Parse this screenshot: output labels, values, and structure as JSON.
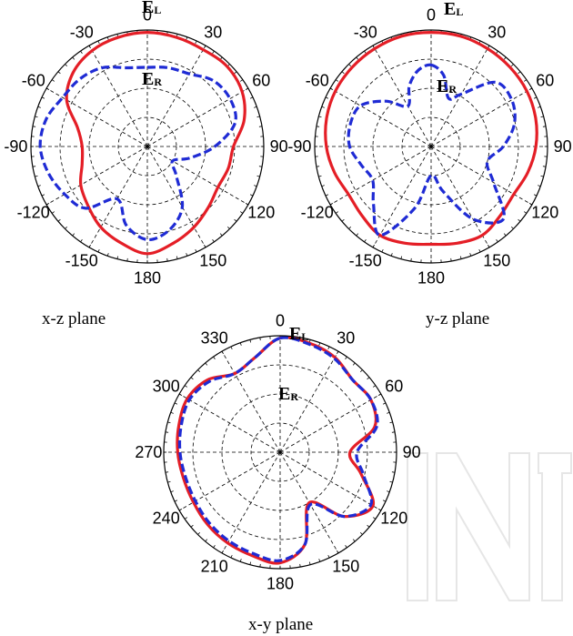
{
  "colors": {
    "el": "#e41e26",
    "er": "#1f2bd4",
    "grid": "#000000",
    "watermark": "#e6e6e6"
  },
  "legend_labels": [
    "E",
    "L",
    "E",
    "R"
  ],
  "chart_data": [
    {
      "type": "polar-line",
      "caption": "x-z plane",
      "grid": true,
      "r_range": [
        0,
        1
      ],
      "angle_ticks": [
        "0",
        "30",
        "60",
        "90",
        "120",
        "150",
        "180",
        "-150",
        "-120",
        "-90",
        "-60",
        "-30"
      ],
      "series": [
        {
          "label_letter": "E",
          "label_sub": "L",
          "line": "solid",
          "color_key": "el",
          "angles": [
            0,
            15,
            30,
            45,
            60,
            75,
            90,
            105,
            120,
            135,
            150,
            165,
            180,
            195,
            210,
            225,
            240,
            255,
            270,
            285,
            300,
            315,
            330,
            345
          ],
          "r": [
            0.98,
            0.97,
            0.96,
            0.97,
            0.94,
            0.86,
            0.74,
            0.72,
            0.7,
            0.74,
            0.8,
            0.86,
            0.92,
            0.86,
            0.8,
            0.72,
            0.66,
            0.58,
            0.56,
            0.62,
            0.8,
            0.9,
            0.95,
            0.97
          ]
        },
        {
          "label_letter": "E",
          "label_sub": "R",
          "line": "dashed",
          "color_key": "er",
          "angles": [
            0,
            15,
            30,
            45,
            60,
            75,
            90,
            105,
            120,
            135,
            150,
            165,
            180,
            195,
            210,
            225,
            240,
            255,
            270,
            285,
            300,
            315,
            330,
            345
          ],
          "r": [
            0.68,
            0.7,
            0.72,
            0.8,
            0.82,
            0.78,
            0.58,
            0.38,
            0.25,
            0.35,
            0.6,
            0.74,
            0.8,
            0.7,
            0.52,
            0.75,
            0.82,
            0.88,
            0.92,
            0.9,
            0.84,
            0.82,
            0.78,
            0.7
          ]
        }
      ]
    },
    {
      "type": "polar-line",
      "caption": "y-z plane",
      "grid": true,
      "r_range": [
        0,
        1
      ],
      "angle_ticks": [
        "0",
        "30",
        "60",
        "90",
        "120",
        "150",
        "180",
        "-150",
        "-120",
        "-90",
        "-60",
        "-30"
      ],
      "series": [
        {
          "label_letter": "E",
          "label_sub": "L",
          "line": "solid",
          "color_key": "el",
          "angles": [
            0,
            15,
            30,
            45,
            60,
            75,
            90,
            105,
            120,
            135,
            150,
            165,
            180,
            195,
            210,
            225,
            240,
            255,
            270,
            285,
            300,
            315,
            330,
            345
          ],
          "r": [
            0.98,
            0.98,
            0.97,
            0.96,
            0.95,
            0.93,
            0.9,
            0.86,
            0.82,
            0.84,
            0.88,
            0.86,
            0.84,
            0.86,
            0.88,
            0.84,
            0.82,
            0.86,
            0.9,
            0.93,
            0.95,
            0.96,
            0.97,
            0.98
          ]
        },
        {
          "label_letter": "E",
          "label_sub": "R",
          "line": "dashed",
          "color_key": "er",
          "angles": [
            0,
            10,
            20,
            30,
            45,
            60,
            75,
            90,
            105,
            120,
            135,
            150,
            165,
            180,
            195,
            210,
            225,
            240,
            255,
            270,
            285,
            300,
            315,
            330,
            340,
            350
          ],
          "r": [
            0.7,
            0.62,
            0.44,
            0.52,
            0.78,
            0.8,
            0.74,
            0.62,
            0.5,
            0.62,
            0.88,
            0.72,
            0.4,
            0.25,
            0.55,
            0.88,
            0.7,
            0.58,
            0.62,
            0.7,
            0.72,
            0.7,
            0.55,
            0.4,
            0.55,
            0.66
          ]
        }
      ]
    },
    {
      "type": "polar-line",
      "caption": "x-y plane",
      "grid": true,
      "r_range": [
        0,
        1
      ],
      "angle_ticks": [
        "0",
        "30",
        "60",
        "90",
        "120",
        "150",
        "180",
        "210",
        "240",
        "270",
        "300",
        "330"
      ],
      "series": [
        {
          "label_letter": "E",
          "label_sub": "L",
          "line": "solid",
          "color_key": "el",
          "angles": [
            0,
            15,
            30,
            45,
            60,
            75,
            90,
            105,
            120,
            135,
            150,
            165,
            180,
            195,
            210,
            225,
            240,
            255,
            270,
            285,
            300,
            315,
            330,
            345
          ],
          "r": [
            0.98,
            0.97,
            0.94,
            0.88,
            0.9,
            0.84,
            0.6,
            0.72,
            0.92,
            0.78,
            0.5,
            0.82,
            0.95,
            0.92,
            0.9,
            0.88,
            0.86,
            0.86,
            0.88,
            0.9,
            0.92,
            0.88,
            0.78,
            0.84
          ]
        },
        {
          "label_letter": "E",
          "label_sub": "R",
          "line": "dashed",
          "color_key": "er",
          "angles": [
            0,
            15,
            30,
            45,
            60,
            75,
            90,
            105,
            120,
            135,
            150,
            165,
            180,
            195,
            210,
            225,
            240,
            255,
            270,
            285,
            300,
            315,
            330,
            345
          ],
          "r": [
            0.98,
            0.96,
            0.93,
            0.88,
            0.9,
            0.86,
            0.66,
            0.74,
            0.9,
            0.78,
            0.52,
            0.82,
            0.93,
            0.9,
            0.88,
            0.86,
            0.84,
            0.84,
            0.86,
            0.88,
            0.9,
            0.86,
            0.78,
            0.84
          ]
        }
      ]
    }
  ]
}
